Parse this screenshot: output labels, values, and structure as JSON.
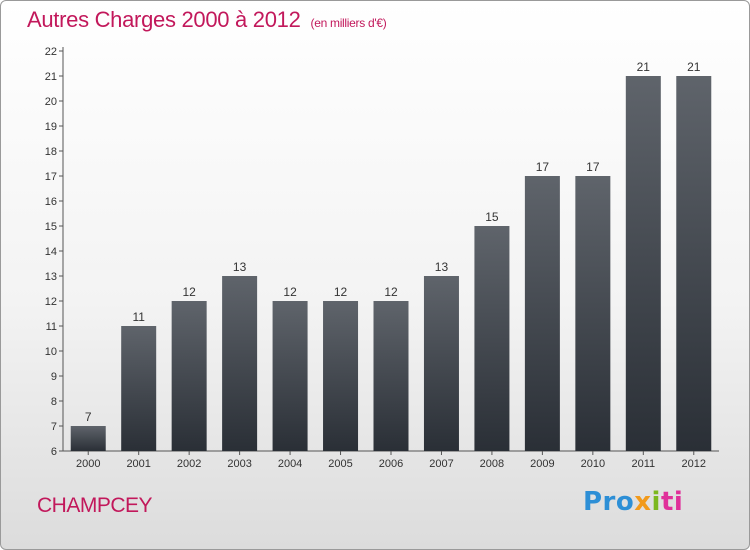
{
  "title": "Autres Charges 2000 à 2012",
  "subtitle": "(en milliers d'€)",
  "commune": "CHAMPCEY",
  "logo": {
    "part1": "Pro",
    "part2": "x",
    "part3": "i",
    "part4": "ti"
  },
  "colors": {
    "title": "#c2185b",
    "bar_top": "#5f646b",
    "bar_bottom": "#2a2f36",
    "axis": "#555555"
  },
  "chart_data": {
    "type": "bar",
    "categories": [
      "2000",
      "2001",
      "2002",
      "2003",
      "2004",
      "2005",
      "2006",
      "2007",
      "2008",
      "2009",
      "2010",
      "2011",
      "2012"
    ],
    "values": [
      7,
      11,
      12,
      13,
      12,
      12,
      12,
      13,
      15,
      17,
      17,
      21,
      21
    ],
    "title": "Autres Charges 2000 à 2012",
    "xlabel": "",
    "ylabel": "",
    "ylim": [
      6,
      22
    ],
    "yticks": [
      6,
      7,
      8,
      9,
      10,
      11,
      12,
      13,
      14,
      15,
      16,
      17,
      18,
      19,
      20,
      21,
      22
    ],
    "grid": false,
    "data_labels": true
  }
}
